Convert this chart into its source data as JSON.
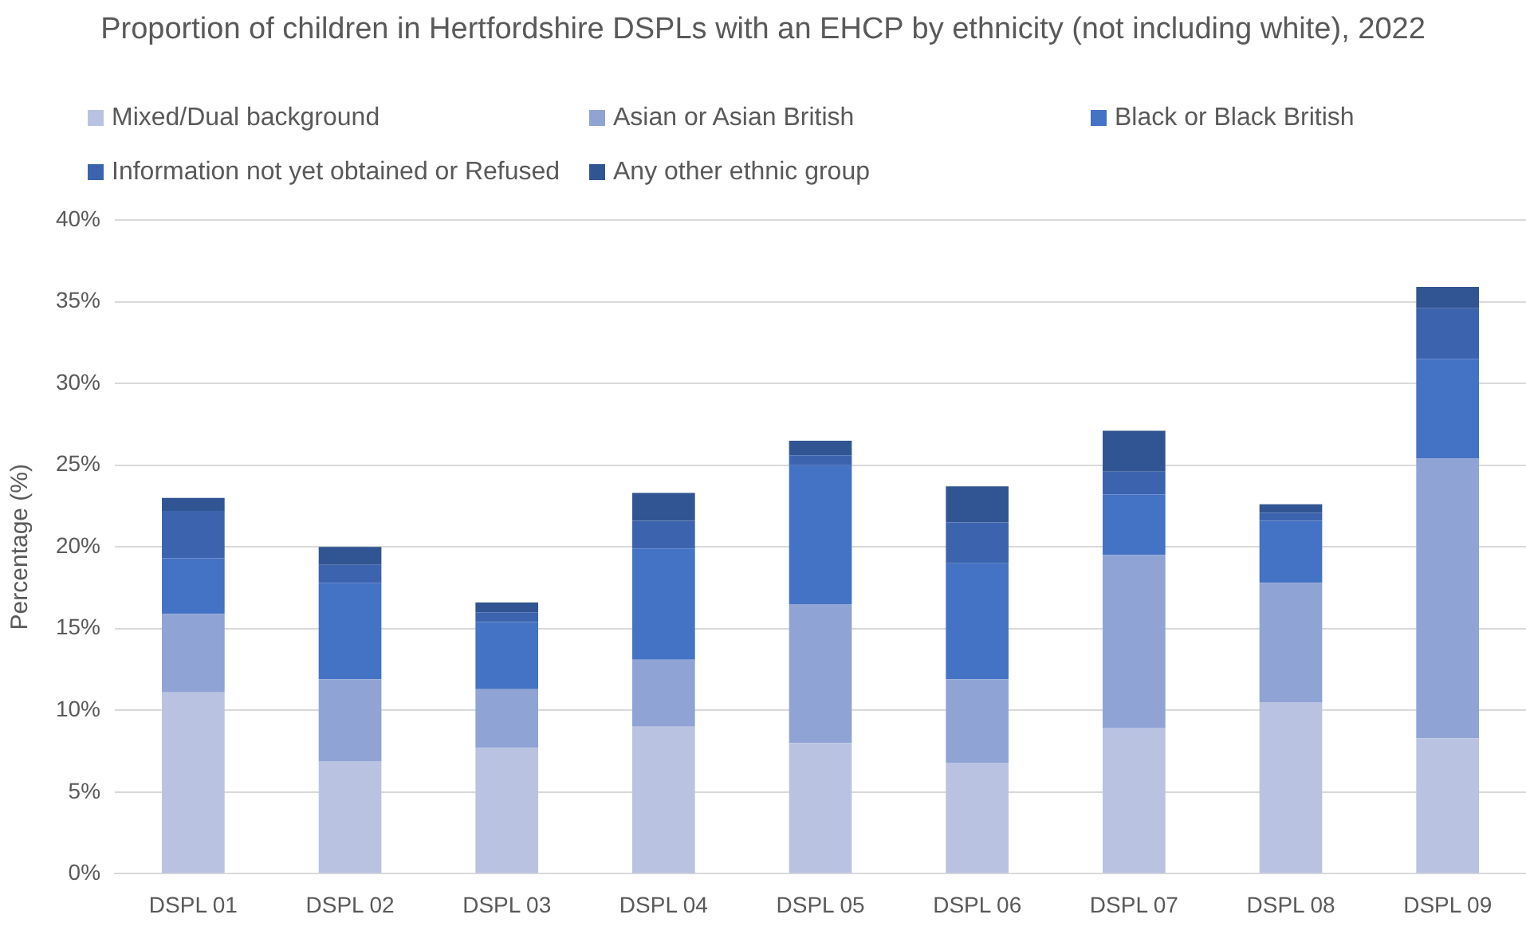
{
  "chart_data": {
    "type": "bar",
    "title": "Proportion of children in Hertfordshire DSPLs with an EHCP by ethnicity (not including white), 2022",
    "ylabel": "Percentage (%)",
    "categories": [
      "DSPL 01",
      "DSPL 02",
      "DSPL 03",
      "DSPL 04",
      "DSPL 05",
      "DSPL 06",
      "DSPL 07",
      "DSPL 08",
      "DSPL 09"
    ],
    "stacked": true,
    "series": [
      {
        "name": "Mixed/Dual background",
        "color": "#b9c3e1",
        "values": [
          11.1,
          6.9,
          7.7,
          9.0,
          8.0,
          6.8,
          8.9,
          10.5,
          8.3
        ]
      },
      {
        "name": "Asian or Asian British",
        "color": "#8fa3d4",
        "values": [
          4.8,
          5.0,
          3.6,
          4.1,
          8.5,
          5.1,
          10.6,
          7.3,
          17.1
        ]
      },
      {
        "name": "Black or Black British",
        "color": "#4472c4",
        "values": [
          3.4,
          5.9,
          4.1,
          6.8,
          8.5,
          7.1,
          3.7,
          3.8,
          6.1
        ]
      },
      {
        "name": "Information not yet obtained or Refused",
        "color": "#3c64ae",
        "values": [
          2.9,
          1.1,
          0.6,
          1.7,
          0.6,
          2.5,
          1.4,
          0.5,
          3.1
        ]
      },
      {
        "name": "Any other ethnic group",
        "color": "#315592",
        "values": [
          0.8,
          1.1,
          0.6,
          1.7,
          0.9,
          2.2,
          2.5,
          0.5,
          1.3
        ]
      }
    ],
    "ylim": [
      0,
      40
    ],
    "yticks": [
      {
        "value": 0,
        "label": "0%"
      },
      {
        "value": 5,
        "label": "5%"
      },
      {
        "value": 10,
        "label": "10%"
      },
      {
        "value": 15,
        "label": "15%"
      },
      {
        "value": 20,
        "label": "20%"
      },
      {
        "value": 25,
        "label": "25%"
      },
      {
        "value": 30,
        "label": "30%"
      },
      {
        "value": 35,
        "label": "35%"
      },
      {
        "value": 40,
        "label": "40%"
      }
    ],
    "grid": "y",
    "legend": "top"
  }
}
